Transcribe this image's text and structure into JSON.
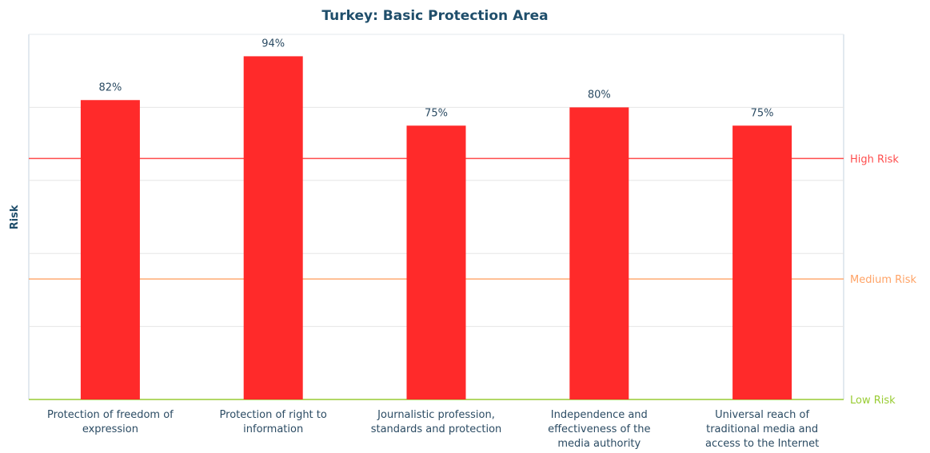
{
  "chart_data": {
    "type": "bar",
    "title": "Turkey: Basic Protection Area",
    "ylabel": "Risk",
    "xlabel": "",
    "ylim": [
      0,
      100
    ],
    "grid": true,
    "categories": [
      [
        "Protection of freedom of",
        "expression"
      ],
      [
        "Protection of right to",
        "information"
      ],
      [
        "Journalistic profession,",
        "standards and protection"
      ],
      [
        "Independence and",
        "effectiveness of the",
        "media authority"
      ],
      [
        "Universal reach of",
        "traditional media and",
        "access to the Internet"
      ]
    ],
    "values": [
      82,
      94,
      75,
      80,
      75
    ],
    "value_labels": [
      "82%",
      "94%",
      "75%",
      "80%",
      "75%"
    ],
    "bar_color": "#ff2a2a",
    "thresholds": [
      {
        "label": "High Risk",
        "value": 66,
        "color": "#ff4d4d"
      },
      {
        "label": "Medium Risk",
        "value": 33,
        "color": "#ffa366"
      },
      {
        "label": "Low Risk",
        "value": 0,
        "color": "#99cc33"
      }
    ]
  }
}
